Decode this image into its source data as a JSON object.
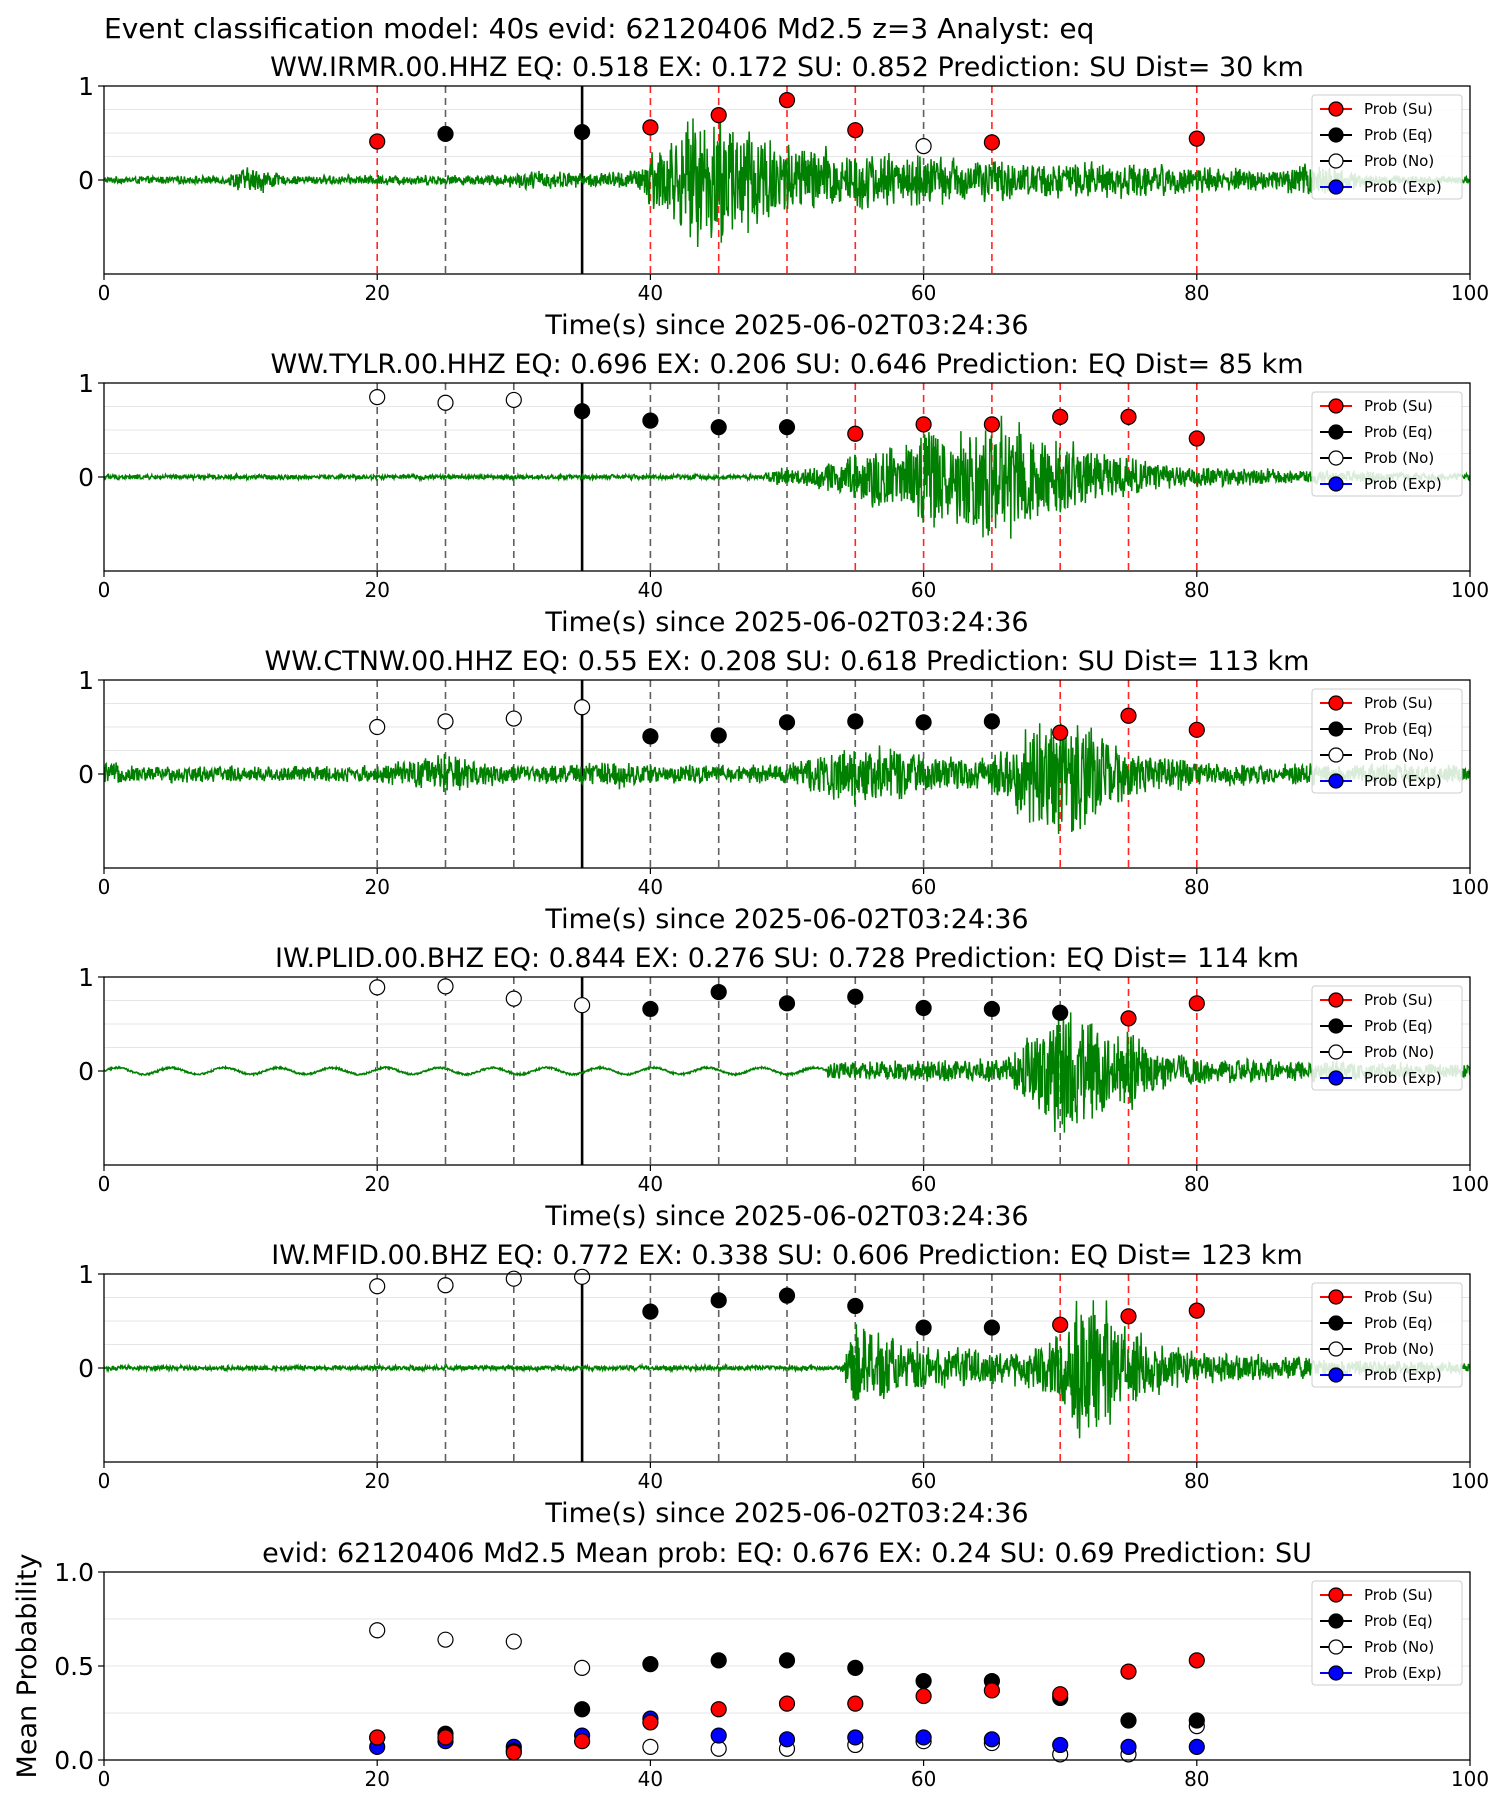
{
  "figure": {
    "suptitle": "Event classification model: 40s evid: 62120406 Md2.5 z=3 Analyst: eq"
  },
  "legend": {
    "entries": [
      {
        "label": "Prob (Su)",
        "color": "#ff0000",
        "face": "#ff0000"
      },
      {
        "label": "Prob (Eq)",
        "color": "#000000",
        "face": "#000000"
      },
      {
        "label": "Prob (No)",
        "color": "#000000",
        "face": "#ffffff"
      },
      {
        "label": "Prob (Exp)",
        "color": "#0000ff",
        "face": "#0000ff"
      }
    ]
  },
  "colors": {
    "waveform": "#008000",
    "su_marker": "#ff0000",
    "eq_marker": "#000000",
    "no_marker": "#ffffff",
    "exp_marker": "#0000ff",
    "su_line": "#ff0000",
    "eq_line": "#444444"
  },
  "chart_data": [
    {
      "type": "scatter",
      "title": "WW.IRMR.00.HHZ   EQ: 0.518  EX: 0.172  SU: 0.852   Prediction: SU    Dist= 30 km",
      "xlabel": "Time(s) since 2025-06-02T03:24:36",
      "ylabel": "",
      "xlim": [
        0,
        100
      ],
      "ylim": [
        -1,
        1
      ],
      "xticks": [
        "0",
        "20",
        "40",
        "60",
        "80",
        "100"
      ],
      "yticks": [
        "0",
        "1"
      ],
      "pick_time": 35,
      "waveform_envelope": [
        [
          0,
          0.04
        ],
        [
          9,
          0.05
        ],
        [
          10,
          0.15
        ],
        [
          12,
          0.15
        ],
        [
          13,
          0.05
        ],
        [
          20,
          0.06
        ],
        [
          28,
          0.06
        ],
        [
          32,
          0.12
        ],
        [
          35,
          0.08
        ],
        [
          39,
          0.12
        ],
        [
          40,
          0.4
        ],
        [
          42,
          0.55
        ],
        [
          43,
          0.7
        ],
        [
          45,
          0.85
        ],
        [
          47,
          0.75
        ],
        [
          50,
          0.45
        ],
        [
          55,
          0.35
        ],
        [
          60,
          0.3
        ],
        [
          65,
          0.25
        ],
        [
          68,
          0.2
        ],
        [
          72,
          0.22
        ],
        [
          78,
          0.18
        ],
        [
          85,
          0.12
        ],
        [
          88,
          0.2
        ],
        [
          90,
          0.16
        ],
        [
          93,
          0.06
        ],
        [
          100,
          0.04
        ]
      ],
      "windows": [
        {
          "t": 20,
          "cls": "SU",
          "prob": 0.41
        },
        {
          "t": 25,
          "cls": "EQ",
          "prob": 0.49
        },
        {
          "t": 35,
          "cls": "EQ",
          "prob": 0.51
        },
        {
          "t": 40,
          "cls": "SU",
          "prob": 0.56
        },
        {
          "t": 45,
          "cls": "SU",
          "prob": 0.69
        },
        {
          "t": 50,
          "cls": "SU",
          "prob": 0.85
        },
        {
          "t": 55,
          "cls": "SU",
          "prob": 0.53
        },
        {
          "t": 60,
          "cls": "NO",
          "prob": 0.36
        },
        {
          "t": 65,
          "cls": "SU",
          "prob": 0.4
        },
        {
          "t": 80,
          "cls": "SU",
          "prob": 0.44
        }
      ]
    },
    {
      "type": "scatter",
      "title": "WW.TYLR.00.HHZ   EQ: 0.696  EX: 0.206  SU: 0.646   Prediction: EQ    Dist= 85 km",
      "xlabel": "Time(s) since 2025-06-02T03:24:36",
      "ylabel": "",
      "xlim": [
        0,
        100
      ],
      "ylim": [
        -1,
        1
      ],
      "xticks": [
        "0",
        "20",
        "40",
        "60",
        "80",
        "100"
      ],
      "yticks": [
        "0",
        "1"
      ],
      "pick_time": 35,
      "waveform_envelope": [
        [
          0,
          0.03
        ],
        [
          48,
          0.03
        ],
        [
          49,
          0.1
        ],
        [
          52,
          0.12
        ],
        [
          53,
          0.2
        ],
        [
          55,
          0.3
        ],
        [
          58,
          0.4
        ],
        [
          60,
          0.65
        ],
        [
          62,
          0.55
        ],
        [
          64,
          0.7
        ],
        [
          66,
          0.85
        ],
        [
          67,
          0.7
        ],
        [
          70,
          0.5
        ],
        [
          72,
          0.35
        ],
        [
          76,
          0.2
        ],
        [
          80,
          0.12
        ],
        [
          90,
          0.07
        ],
        [
          100,
          0.04
        ]
      ],
      "windows": [
        {
          "t": 20,
          "cls": "NO",
          "prob": 0.85
        },
        {
          "t": 25,
          "cls": "NO",
          "prob": 0.79
        },
        {
          "t": 30,
          "cls": "NO",
          "prob": 0.82
        },
        {
          "t": 35,
          "cls": "EQ",
          "prob": 0.7
        },
        {
          "t": 40,
          "cls": "EQ",
          "prob": 0.6
        },
        {
          "t": 45,
          "cls": "EQ",
          "prob": 0.53
        },
        {
          "t": 50,
          "cls": "EQ",
          "prob": 0.53
        },
        {
          "t": 55,
          "cls": "SU",
          "prob": 0.46
        },
        {
          "t": 60,
          "cls": "SU",
          "prob": 0.56
        },
        {
          "t": 65,
          "cls": "SU",
          "prob": 0.56
        },
        {
          "t": 70,
          "cls": "SU",
          "prob": 0.64
        },
        {
          "t": 75,
          "cls": "SU",
          "prob": 0.64
        },
        {
          "t": 80,
          "cls": "SU",
          "prob": 0.41
        }
      ]
    },
    {
      "type": "scatter",
      "title": "WW.CTNW.00.HHZ   EQ: 0.55  EX: 0.208  SU: 0.618   Prediction: SU    Dist= 113 km",
      "xlabel": "Time(s) since 2025-06-02T03:24:36",
      "ylabel": "",
      "xlim": [
        0,
        100
      ],
      "ylim": [
        -1,
        1
      ],
      "xticks": [
        "0",
        "20",
        "40",
        "60",
        "80",
        "100"
      ],
      "yticks": [
        "0",
        "1"
      ],
      "pick_time": 35,
      "waveform_envelope": [
        [
          0,
          0.15
        ],
        [
          2,
          0.1
        ],
        [
          20,
          0.1
        ],
        [
          23,
          0.18
        ],
        [
          25,
          0.25
        ],
        [
          27,
          0.18
        ],
        [
          30,
          0.1
        ],
        [
          35,
          0.12
        ],
        [
          37,
          0.18
        ],
        [
          40,
          0.12
        ],
        [
          45,
          0.1
        ],
        [
          50,
          0.12
        ],
        [
          53,
          0.3
        ],
        [
          55,
          0.35
        ],
        [
          58,
          0.3
        ],
        [
          60,
          0.2
        ],
        [
          65,
          0.2
        ],
        [
          68,
          0.6
        ],
        [
          70,
          0.8
        ],
        [
          72,
          0.6
        ],
        [
          75,
          0.3
        ],
        [
          80,
          0.15
        ],
        [
          90,
          0.12
        ],
        [
          100,
          0.1
        ]
      ],
      "windows": [
        {
          "t": 20,
          "cls": "NO",
          "prob": 0.5
        },
        {
          "t": 25,
          "cls": "NO",
          "prob": 0.56
        },
        {
          "t": 30,
          "cls": "NO",
          "prob": 0.59
        },
        {
          "t": 35,
          "cls": "NO",
          "prob": 0.71
        },
        {
          "t": 40,
          "cls": "EQ",
          "prob": 0.4
        },
        {
          "t": 45,
          "cls": "EQ",
          "prob": 0.41
        },
        {
          "t": 50,
          "cls": "EQ",
          "prob": 0.55
        },
        {
          "t": 55,
          "cls": "EQ",
          "prob": 0.56
        },
        {
          "t": 60,
          "cls": "EQ",
          "prob": 0.55
        },
        {
          "t": 65,
          "cls": "EQ",
          "prob": 0.56
        },
        {
          "t": 70,
          "cls": "SU",
          "prob": 0.44
        },
        {
          "t": 75,
          "cls": "SU",
          "prob": 0.62
        },
        {
          "t": 80,
          "cls": "SU",
          "prob": 0.47
        }
      ]
    },
    {
      "type": "scatter",
      "title": "IW.PLID.00.BHZ   EQ: 0.844  EX: 0.276  SU: 0.728   Prediction: EQ    Dist= 114 km",
      "xlabel": "Time(s) since 2025-06-02T03:24:36",
      "ylabel": "",
      "xlim": [
        0,
        100
      ],
      "ylim": [
        -1,
        1
      ],
      "xticks": [
        "0",
        "20",
        "40",
        "60",
        "80",
        "100"
      ],
      "yticks": [
        "0",
        "1"
      ],
      "pick_time": 35,
      "waveform_envelope": [
        [
          0,
          0.04
        ],
        [
          52,
          0.04
        ],
        [
          54,
          0.12
        ],
        [
          60,
          0.12
        ],
        [
          66,
          0.15
        ],
        [
          67,
          0.35
        ],
        [
          69,
          0.55
        ],
        [
          70,
          0.8
        ],
        [
          72,
          0.65
        ],
        [
          74,
          0.4
        ],
        [
          75,
          0.5
        ],
        [
          77,
          0.3
        ],
        [
          80,
          0.15
        ],
        [
          90,
          0.12
        ],
        [
          100,
          0.08
        ]
      ],
      "windows": [
        {
          "t": 20,
          "cls": "NO",
          "prob": 0.89
        },
        {
          "t": 25,
          "cls": "NO",
          "prob": 0.9
        },
        {
          "t": 30,
          "cls": "NO",
          "prob": 0.77
        },
        {
          "t": 35,
          "cls": "NO",
          "prob": 0.7
        },
        {
          "t": 40,
          "cls": "EQ",
          "prob": 0.66
        },
        {
          "t": 45,
          "cls": "EQ",
          "prob": 0.84
        },
        {
          "t": 50,
          "cls": "EQ",
          "prob": 0.72
        },
        {
          "t": 55,
          "cls": "EQ",
          "prob": 0.79
        },
        {
          "t": 60,
          "cls": "EQ",
          "prob": 0.67
        },
        {
          "t": 65,
          "cls": "EQ",
          "prob": 0.66
        },
        {
          "t": 70,
          "cls": "EQ",
          "prob": 0.62
        },
        {
          "t": 75,
          "cls": "SU",
          "prob": 0.56
        },
        {
          "t": 80,
          "cls": "SU",
          "prob": 0.72
        }
      ]
    },
    {
      "type": "scatter",
      "title": "IW.MFID.00.BHZ   EQ: 0.772  EX: 0.338  SU: 0.606   Prediction: EQ    Dist= 123 km",
      "xlabel": "Time(s) since 2025-06-02T03:24:36",
      "ylabel": "",
      "xlim": [
        0,
        100
      ],
      "ylim": [
        -1,
        1
      ],
      "xticks": [
        "0",
        "20",
        "40",
        "60",
        "80",
        "100"
      ],
      "yticks": [
        "0",
        "1"
      ],
      "pick_time": 35,
      "waveform_envelope": [
        [
          0,
          0.03
        ],
        [
          54,
          0.03
        ],
        [
          55,
          0.55
        ],
        [
          56,
          0.45
        ],
        [
          58,
          0.35
        ],
        [
          62,
          0.25
        ],
        [
          66,
          0.18
        ],
        [
          69,
          0.3
        ],
        [
          70,
          0.55
        ],
        [
          72,
          0.9
        ],
        [
          74,
          0.65
        ],
        [
          76,
          0.4
        ],
        [
          80,
          0.2
        ],
        [
          90,
          0.1
        ],
        [
          100,
          0.06
        ]
      ],
      "windows": [
        {
          "t": 20,
          "cls": "NO",
          "prob": 0.87
        },
        {
          "t": 25,
          "cls": "NO",
          "prob": 0.88
        },
        {
          "t": 30,
          "cls": "NO",
          "prob": 0.95
        },
        {
          "t": 35,
          "cls": "NO",
          "prob": 0.97
        },
        {
          "t": 40,
          "cls": "EQ",
          "prob": 0.6
        },
        {
          "t": 45,
          "cls": "EQ",
          "prob": 0.72
        },
        {
          "t": 50,
          "cls": "EQ",
          "prob": 0.77
        },
        {
          "t": 55,
          "cls": "EQ",
          "prob": 0.66
        },
        {
          "t": 60,
          "cls": "EQ",
          "prob": 0.43
        },
        {
          "t": 65,
          "cls": "EQ",
          "prob": 0.43
        },
        {
          "t": 70,
          "cls": "SU",
          "prob": 0.46
        },
        {
          "t": 75,
          "cls": "SU",
          "prob": 0.55
        },
        {
          "t": 80,
          "cls": "SU",
          "prob": 0.61
        }
      ]
    },
    {
      "type": "scatter",
      "title": "evid: 62120406  Md2.5   Mean prob:   EQ: 0.676  EX: 0.24  SU: 0.69   Prediction: SU",
      "xlabel": "",
      "ylabel": "Mean Probability",
      "xlim": [
        0,
        100
      ],
      "ylim": [
        0,
        1
      ],
      "xticks": [
        "0",
        "20",
        "40",
        "60",
        "80",
        "100"
      ],
      "yticks": [
        "0.0",
        "0.5",
        "1.0"
      ],
      "x": [
        20,
        25,
        30,
        35,
        40,
        45,
        50,
        55,
        60,
        65,
        70,
        75,
        80
      ],
      "series": [
        {
          "name": "Prob (No)",
          "values": [
            0.69,
            0.64,
            0.63,
            0.49,
            0.07,
            0.06,
            0.06,
            0.08,
            0.1,
            0.09,
            0.03,
            0.03,
            0.18
          ]
        },
        {
          "name": "Prob (Exp)",
          "values": [
            0.07,
            0.1,
            0.07,
            0.13,
            0.22,
            0.13,
            0.11,
            0.12,
            0.12,
            0.11,
            0.08,
            0.07,
            0.07
          ]
        },
        {
          "name": "Prob (Eq)",
          "values": [
            0.12,
            0.14,
            0.05,
            0.27,
            0.51,
            0.53,
            0.53,
            0.49,
            0.42,
            0.42,
            0.33,
            0.21,
            0.21
          ]
        },
        {
          "name": "Prob (Su)",
          "values": [
            0.12,
            0.12,
            0.04,
            0.1,
            0.2,
            0.27,
            0.3,
            0.3,
            0.34,
            0.37,
            0.35,
            0.47,
            0.53
          ]
        }
      ]
    }
  ]
}
